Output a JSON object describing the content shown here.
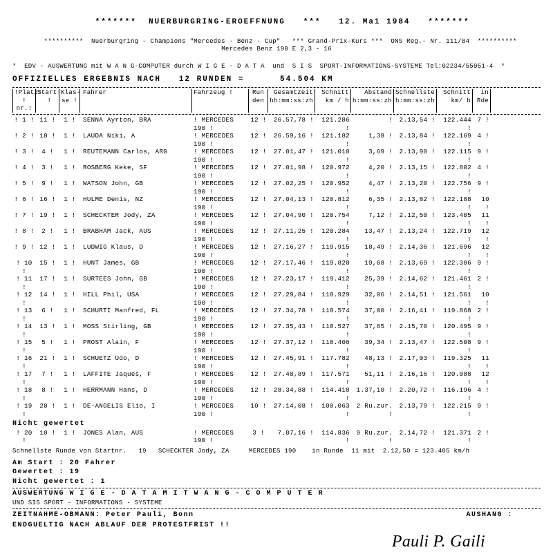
{
  "header": {
    "stars_l": "*******",
    "stars_r": "*******",
    "title": "NUERBURGRING-EROEFFNUNG",
    "sep": "***",
    "date": "12. Mai 1984",
    "line2_l": "**********",
    "line2_txt": "Nuerburgring - Champions \"Mercedes - Benz - Cup\"   *** Grand-Prix-Kurs ***  ONS Reg.- Nr. 111/84",
    "line2_r": "**********",
    "line3": "Mercedes Benz 190 E 2,3 - 16",
    "edv": "*  EDV - AUSWERTUNG mit W A N G-COMPUTER durch W I G E - D A T A  und  S I S  SPORT-INFORMATIONS-SYSTEME Tel:02234/55051-4  *",
    "official": "OFFIZIELLES ERGEBNIS NACH   12 RUNDEN =      54.504 KM"
  },
  "columns": {
    "platz": "Platz!\n! nr.!",
    "start": "Start!\n  !",
    "klas": "Klas-!\n se !",
    "fahrer": "Fahrer",
    "fz": "Fahrzeug !",
    "run": "Run\nden",
    "gz": "Gesamtzeit\nhh:mm:ss:zh",
    "sch": "Schnitt\nkm / h",
    "ab": "Abstand\nh:mm:ss:zh",
    "srd": "Schnellste\nh:mm:ss:zh",
    "sch2": "Schnitt\nkm/ h",
    "rde": "in\nRde"
  },
  "rows": [
    {
      "p": "1",
      "s": "11",
      "k": "1",
      "f": "SENNA Ayrton, BRA",
      "fz": "MERCEDES 190",
      "r": "12",
      "gz": "26.57,78",
      "sch": "121.286",
      "ab": "",
      "srd": "2.13,54",
      "sch2": "122.444",
      "rde": "7"
    },
    {
      "p": "2",
      "s": "18",
      "k": "1",
      "f": "LAUDA Niki, A",
      "fz": "MERCEDES 190",
      "r": "12",
      "gz": "26.59,16",
      "sch": "121.182",
      "ab": "1,38",
      "srd": "2.13,84",
      "sch2": "122.169",
      "rde": "4"
    },
    {
      "p": "3",
      "s": "4",
      "k": "1",
      "f": "REUTEMANN Carlos, ARG",
      "fz": "MERCEDES 190",
      "r": "12",
      "gz": "27.01,47",
      "sch": "121.010",
      "ab": "3,69",
      "srd": "2.13,90",
      "sch2": "122.115",
      "rde": "9"
    },
    {
      "p": "4",
      "s": "3",
      "k": "1",
      "f": "ROSBERG Keke, SF",
      "fz": "MERCEDES 190",
      "r": "12",
      "gz": "27.01,98",
      "sch": "120.972",
      "ab": "4,20",
      "srd": "2.13,15",
      "sch2": "122.802",
      "rde": "4"
    },
    {
      "p": "5",
      "s": "9",
      "k": "1",
      "f": "WATSON John, GB",
      "fz": "MERCEDES 190",
      "r": "12",
      "gz": "27.02,25",
      "sch": "120.952",
      "ab": "4,47",
      "srd": "2.13,20",
      "sch2": "122.756",
      "rde": "9"
    },
    {
      "p": "6",
      "s": "16",
      "k": "1",
      "f": "HULME Denis, NZ",
      "fz": "MERCEDES 190",
      "r": "12",
      "gz": "27.04,13",
      "sch": "120.812",
      "ab": "6,35",
      "srd": "2.13,82",
      "sch2": "122.188",
      "rde": "10"
    },
    {
      "p": "7",
      "s": "19",
      "k": "1",
      "f": "SCHECKTER Jody, ZA",
      "fz": "MERCEDES 190",
      "r": "12",
      "gz": "27.04,90",
      "sch": "120.754",
      "ab": "7,12",
      "srd": "2.12,50",
      "sch2": "123.405",
      "rde": "11"
    },
    {
      "p": "8",
      "s": "2",
      "k": "1",
      "f": "BRABHAM Jack, AUS",
      "fz": "MERCEDES 190",
      "r": "12",
      "gz": "27.11,25",
      "sch": "120.284",
      "ab": "13,47",
      "srd": "2.13,24",
      "sch2": "122.719",
      "rde": "12"
    },
    {
      "p": "9",
      "s": "12",
      "k": "1",
      "f": "LUDWIG Klaus, D",
      "fz": "MERCEDES 190",
      "r": "12",
      "gz": "27.16,27",
      "sch": "119.915",
      "ab": "18,49",
      "srd": "2.14,36",
      "sch2": "121.696",
      "rde": "12"
    },
    {
      "p": "10",
      "s": "15",
      "k": "1",
      "f": "HUNT James, GB",
      "fz": "MERCEDES 190",
      "r": "12",
      "gz": "27.17,46",
      "sch": "119.828",
      "ab": "19,68",
      "srd": "2.13,69",
      "sch2": "122.306",
      "rde": "9"
    },
    {
      "p": "11",
      "s": "17",
      "k": "1",
      "f": "SURTEES John, GB",
      "fz": "MERCEDES 190",
      "r": "12",
      "gz": "27.23,17",
      "sch": "119.412",
      "ab": "25,39",
      "srd": "2.14,62",
      "sch2": "121.461",
      "rde": "2"
    },
    {
      "p": "12",
      "s": "14",
      "k": "1",
      "f": "HILL Phil, USA",
      "fz": "MERCEDES 190",
      "r": "12",
      "gz": "27.29,84",
      "sch": "118.929",
      "ab": "32,06",
      "srd": "2.14,51",
      "sch2": "121.561",
      "rde": "10"
    },
    {
      "p": "13",
      "s": "6",
      "k": "1",
      "f": "SCHURTI Manfred, FL",
      "fz": "MERCEDES 190",
      "r": "12",
      "gz": "27.34,78",
      "sch": "118.574",
      "ab": "37,00",
      "srd": "2.16,41",
      "sch2": "119.868",
      "rde": "2"
    },
    {
      "p": "14",
      "s": "13",
      "k": "1",
      "f": "MOSS Stirling, GB",
      "fz": "MERCEDES 190",
      "r": "12",
      "gz": "27.35,43",
      "sch": "118.527",
      "ab": "37,65",
      "srd": "2.15,70",
      "sch2": "120.495",
      "rde": "9"
    },
    {
      "p": "15",
      "s": "5",
      "k": "1",
      "f": "PROST Alain, F",
      "fz": "MERCEDES 190",
      "r": "12",
      "gz": "27.37,12",
      "sch": "118.406",
      "ab": "39,34",
      "srd": "2.13,47",
      "sch2": "122.508",
      "rde": "9"
    },
    {
      "p": "16",
      "s": "21",
      "k": "1",
      "f": "SCHUETZ Udo, D",
      "fz": "MERCEDES 190",
      "r": "12",
      "gz": "27.45,91",
      "sch": "117.782",
      "ab": "48,13",
      "srd": "2.17,03",
      "sch2": "119.325",
      "rde": "11"
    },
    {
      "p": "17",
      "s": "7",
      "k": "1",
      "f": "LAFFITE Jaques, F",
      "fz": "MERCEDES 190",
      "r": "12",
      "gz": "27.48,89",
      "sch": "117.571",
      "ab": "51,11",
      "srd": "2.16,16",
      "sch2": "120.088",
      "rde": "12"
    },
    {
      "p": "18",
      "s": "8",
      "k": "1",
      "f": "HERRMANN Hans, D",
      "fz": "MERCEDES 190",
      "r": "12",
      "gz": "28.34,88",
      "sch": "114.418",
      "ab": "1.37,10",
      "srd": "2.20,72",
      "sch2": "116.196",
      "rde": "4"
    },
    {
      "p": "19",
      "s": "20",
      "k": "1",
      "f": "DE-ANGELIS Elio, I",
      "fz": "MERCEDES 190",
      "r": "10",
      "gz": "27.14,08",
      "sch": "100.063",
      "ab": "2  Ru.zur.",
      "srd": "2.13,79",
      "sch2": "122.215",
      "rde": "9"
    }
  ],
  "ng_title": "Nicht gewertet",
  "ng_row": {
    "p": "20",
    "s": "10",
    "k": "1",
    "f": "JONES Alan, AUS",
    "fz": "MERCEDES 190",
    "r": "3",
    "gz": "7.07,16",
    "sch": "114.836",
    "ab": "9  Ru.zur.",
    "srd": "2.14,72",
    "sch2": "121.371",
    "rde": "2"
  },
  "fastest": "Schnellste Runde von Startnr.   19   SCHECKTER Jody, ZA     MERCEDES 190    in Runde  11 mit  2.12,50 = 123.405 km/h",
  "foot": {
    "am_start": "Am Start          :  20     Fahrer",
    "gewertet": "Gewertet          :  19",
    "nicht": "Nicht gewertet :  1",
    "ausw": "AUSWERTUNG   W I G E  -  D A T A     M I T     W A N G - C O M P U T E R",
    "ausw2": "         UND  SIS   SPORT  -  INFORMATIONS  -  SYSTEME",
    "zeit": "ZEITNAHME-OBMANN:  Peter Pauli, Bonn",
    "aushang": "AUSHANG :",
    "endg": "ENDGUELTIG NACH ABLAUF DER PROTESTFRIST !!",
    "sig": "Pauli  P. Gaili"
  }
}
